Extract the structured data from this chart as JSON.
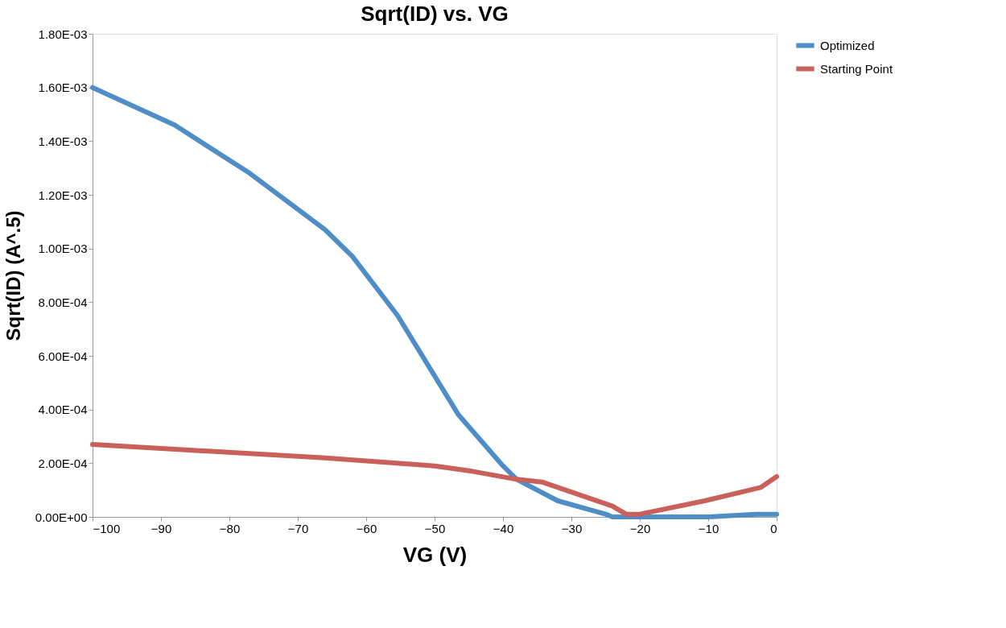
{
  "chart_data": {
    "type": "line",
    "title": "Sqrt(ID) vs. VG",
    "xlabel": "VG (V)",
    "ylabel": "Sqrt(ID) (A^.5)",
    "xlim": [
      -100,
      0
    ],
    "xticks": [
      -100,
      -90,
      -80,
      -70,
      -60,
      -50,
      -40,
      -30,
      -20,
      -10,
      0
    ],
    "ylim": [
      0,
      0.0018
    ],
    "yticks": [
      {
        "value": 0,
        "label": "0.00E+00"
      },
      {
        "value": 0.0002,
        "label": "2.00E-04"
      },
      {
        "value": 0.0004,
        "label": "4.00E-04"
      },
      {
        "value": 0.0006,
        "label": "6.00E-04"
      },
      {
        "value": 0.0008,
        "label": "8.00E-04"
      },
      {
        "value": 0.001,
        "label": "1.00E-03"
      },
      {
        "value": 0.0012,
        "label": "1.20E-03"
      },
      {
        "value": 0.0014,
        "label": "1.40E-03"
      },
      {
        "value": 0.0016,
        "label": "1.60E-03"
      },
      {
        "value": 0.0018,
        "label": "1.80E-03"
      }
    ],
    "grid": false,
    "legend": "right",
    "marker": "none",
    "line_style": "solid",
    "series": [
      {
        "name": "Optimized",
        "color": "#4f8dc6",
        "x": [
          -100,
          -88,
          -77,
          -66,
          -62,
          -55.4,
          -46.5,
          -40,
          -38,
          -32,
          -25,
          -24,
          -20,
          -10,
          -3,
          0
        ],
        "values": [
          0.0016,
          0.00146,
          0.00128,
          0.00107,
          0.00097,
          0.00075,
          0.00038,
          0.00019,
          0.00014,
          6e-05,
          1e-05,
          0,
          0,
          0,
          1e-05,
          1e-05
        ]
      },
      {
        "name": "Starting Point",
        "color": "#c9605a",
        "x": [
          -100,
          -66,
          -50,
          -44.5,
          -38,
          -34.3,
          -24,
          -22,
          -20,
          -10.5,
          -2.3,
          0
        ],
        "values": [
          0.00027,
          0.00022,
          0.00019,
          0.00017,
          0.00014,
          0.00013,
          4e-05,
          1e-05,
          1e-05,
          6e-05,
          0.00011,
          0.00015
        ]
      }
    ]
  }
}
